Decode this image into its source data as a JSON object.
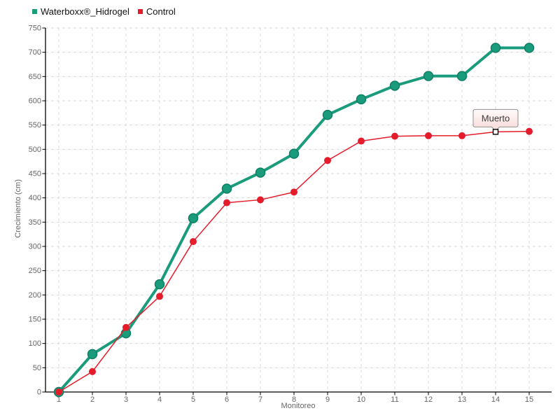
{
  "chart_data": {
    "type": "line",
    "title": "",
    "xlabel": "Monitoreo",
    "ylabel": "Crecimiento (cm)",
    "x": [
      1,
      2,
      3,
      4,
      5,
      6,
      7,
      8,
      9,
      10,
      11,
      12,
      13,
      14,
      15
    ],
    "ylim": [
      0,
      750
    ],
    "ytick_step": 50,
    "grid": "dashed",
    "legend_position": "top-left",
    "series": [
      {
        "name": "Waterboxx®_Hidrogel",
        "color": "#1a9c7c",
        "point_edge_color": "#0f7f63",
        "line_width": 4,
        "values": [
          0,
          78,
          121,
          222,
          358,
          419,
          452,
          491,
          571,
          603,
          631,
          651,
          651,
          709,
          709
        ]
      },
      {
        "name": "Control",
        "color": "#e51c2c",
        "line_width": 1.5,
        "values": [
          0,
          42,
          133,
          197,
          310,
          390,
          396,
          412,
          477,
          517,
          527,
          528,
          528,
          536,
          537
        ]
      }
    ],
    "annotation": {
      "label": "Muerto",
      "series": "Control",
      "x": 14,
      "value": 536,
      "marker": "open-square",
      "box_fill_top": "#fffbfb",
      "box_fill_bottom": "#f8d8d6",
      "box_border": "#909090",
      "label_color": "#3c3c3c"
    }
  },
  "colors": {
    "axis": "#000000",
    "grid": "#d9d9d9",
    "tick_label": "#666666",
    "axis_title": "#666666",
    "legend_text": "#111111",
    "background": "#ffffff"
  }
}
